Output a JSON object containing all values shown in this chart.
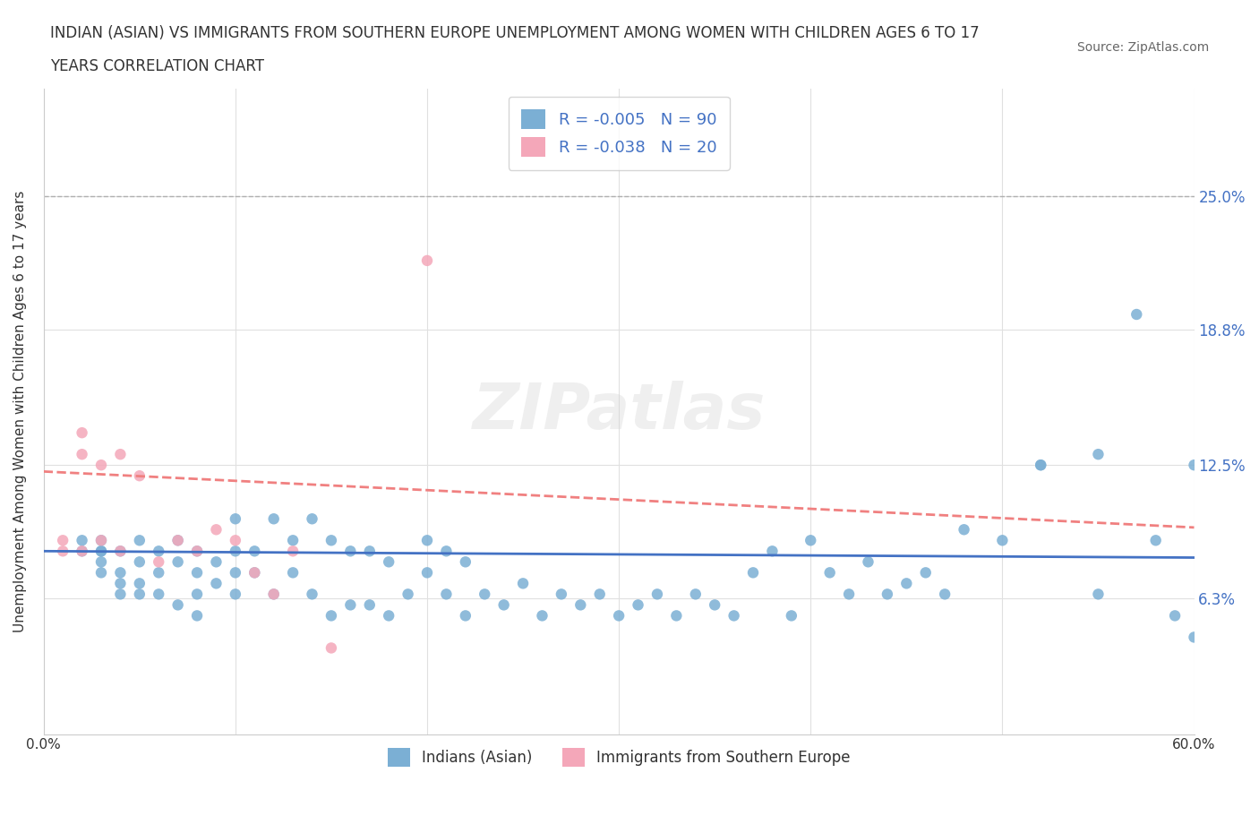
{
  "title_line1": "INDIAN (ASIAN) VS IMMIGRANTS FROM SOUTHERN EUROPE UNEMPLOYMENT AMONG WOMEN WITH CHILDREN AGES 6 TO 17",
  "title_line2": "YEARS CORRELATION CHART",
  "source_text": "Source: ZipAtlas.com",
  "xlabel": "",
  "ylabel": "Unemployment Among Women with Children Ages 6 to 17 years",
  "watermark": "ZIPatlas",
  "legend_entries": [
    {
      "label": "R = -0.005   N = 90",
      "color": "#a8c4e0"
    },
    {
      "label": "R = -0.038   N = 20",
      "color": "#f4a7b9"
    }
  ],
  "legend_bottom": [
    {
      "label": "Indians (Asian)",
      "color": "#a8c4e0"
    },
    {
      "label": "Immigrants from Southern Europe",
      "color": "#f4a7b9"
    }
  ],
  "blue_color": "#7bafd4",
  "pink_color": "#f4a7b9",
  "blue_line_color": "#4472c4",
  "pink_line_color": "#f08080",
  "horizontal_line_color": "#4472c4",
  "dashed_line_color": "#c0c0c0",
  "xlim": [
    0,
    0.6
  ],
  "ylim": [
    0,
    0.3
  ],
  "y_tick_labels": [
    "",
    "6.3%",
    "12.5%",
    "18.8%",
    "25.0%"
  ],
  "y_tick_values": [
    0,
    0.063,
    0.125,
    0.188,
    0.25
  ],
  "x_tick_labels": [
    "0.0%",
    "",
    "",
    "",
    "",
    "",
    "60.0%"
  ],
  "x_tick_values": [
    0,
    0.1,
    0.2,
    0.3,
    0.4,
    0.5,
    0.6
  ],
  "blue_scatter_x": [
    0.02,
    0.02,
    0.03,
    0.03,
    0.03,
    0.03,
    0.03,
    0.04,
    0.04,
    0.04,
    0.04,
    0.05,
    0.05,
    0.05,
    0.05,
    0.06,
    0.06,
    0.06,
    0.07,
    0.07,
    0.07,
    0.08,
    0.08,
    0.08,
    0.08,
    0.09,
    0.09,
    0.1,
    0.1,
    0.1,
    0.1,
    0.11,
    0.11,
    0.12,
    0.12,
    0.13,
    0.13,
    0.14,
    0.14,
    0.15,
    0.15,
    0.16,
    0.16,
    0.17,
    0.17,
    0.18,
    0.18,
    0.19,
    0.2,
    0.2,
    0.21,
    0.21,
    0.22,
    0.22,
    0.23,
    0.24,
    0.25,
    0.26,
    0.27,
    0.28,
    0.29,
    0.3,
    0.31,
    0.32,
    0.33,
    0.34,
    0.35,
    0.36,
    0.37,
    0.38,
    0.39,
    0.4,
    0.41,
    0.42,
    0.43,
    0.44,
    0.45,
    0.46,
    0.47,
    0.5,
    0.52,
    0.55,
    0.57,
    0.58,
    0.59,
    0.6,
    0.55,
    0.6,
    0.52,
    0.48
  ],
  "blue_scatter_y": [
    0.085,
    0.09,
    0.085,
    0.09,
    0.085,
    0.08,
    0.075,
    0.085,
    0.075,
    0.07,
    0.065,
    0.09,
    0.08,
    0.07,
    0.065,
    0.085,
    0.075,
    0.065,
    0.09,
    0.08,
    0.06,
    0.085,
    0.075,
    0.065,
    0.055,
    0.08,
    0.07,
    0.1,
    0.085,
    0.075,
    0.065,
    0.085,
    0.075,
    0.1,
    0.065,
    0.09,
    0.075,
    0.1,
    0.065,
    0.09,
    0.055,
    0.085,
    0.06,
    0.085,
    0.06,
    0.08,
    0.055,
    0.065,
    0.09,
    0.075,
    0.085,
    0.065,
    0.08,
    0.055,
    0.065,
    0.06,
    0.07,
    0.055,
    0.065,
    0.06,
    0.065,
    0.055,
    0.06,
    0.065,
    0.055,
    0.065,
    0.06,
    0.055,
    0.075,
    0.085,
    0.055,
    0.09,
    0.075,
    0.065,
    0.08,
    0.065,
    0.07,
    0.075,
    0.065,
    0.09,
    0.125,
    0.13,
    0.195,
    0.09,
    0.055,
    0.125,
    0.065,
    0.045,
    0.125,
    0.095
  ],
  "pink_scatter_x": [
    0.01,
    0.01,
    0.02,
    0.02,
    0.02,
    0.03,
    0.03,
    0.04,
    0.04,
    0.05,
    0.06,
    0.07,
    0.08,
    0.09,
    0.1,
    0.11,
    0.12,
    0.13,
    0.15,
    0.2
  ],
  "pink_scatter_y": [
    0.09,
    0.085,
    0.14,
    0.13,
    0.085,
    0.125,
    0.09,
    0.13,
    0.085,
    0.12,
    0.08,
    0.09,
    0.085,
    0.095,
    0.09,
    0.075,
    0.065,
    0.085,
    0.04,
    0.22
  ],
  "blue_trend_x": [
    0.0,
    0.6
  ],
  "blue_trend_y": [
    0.085,
    0.082
  ],
  "pink_trend_x": [
    0.0,
    0.6
  ],
  "pink_trend_y": [
    0.122,
    0.096
  ],
  "hline_y": 0.085,
  "dashed_hline_y": 0.25,
  "figsize": [
    14.06,
    9.3
  ],
  "dpi": 100
}
